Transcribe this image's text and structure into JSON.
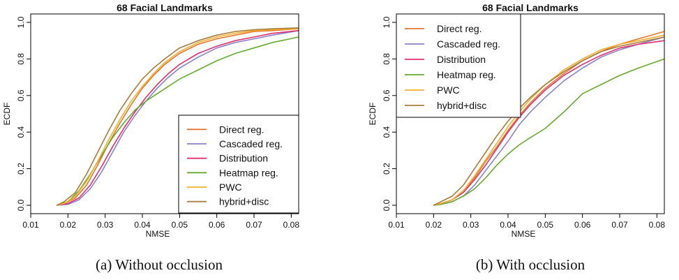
{
  "captions": [
    "(a) Without occlusion",
    "(b) With occlusion"
  ],
  "chart_data": [
    {
      "type": "line",
      "title": "68 Facial Landmarks",
      "xlabel": "NMSE",
      "ylabel": "ECDF",
      "xlim": [
        0.01,
        0.082
      ],
      "ylim": [
        0.0,
        1.0
      ],
      "xticks": [
        "0.01",
        "0.02",
        "0.03",
        "0.04",
        "0.05",
        "0.06",
        "0.07",
        "0.08"
      ],
      "yticks": [
        "0.0",
        "0.2",
        "0.4",
        "0.6",
        "0.8",
        "1.0"
      ],
      "grid": false,
      "legend_position": "bottom-right",
      "series": [
        {
          "name": "Direct reg.",
          "color": "#E3762F",
          "x": [
            0.017,
            0.019,
            0.022,
            0.025,
            0.028,
            0.031,
            0.034,
            0.037,
            0.04,
            0.043,
            0.046,
            0.05,
            0.055,
            0.06,
            0.065,
            0.07,
            0.075,
            0.082
          ],
          "y": [
            0.0,
            0.01,
            0.04,
            0.11,
            0.22,
            0.34,
            0.45,
            0.55,
            0.64,
            0.71,
            0.77,
            0.83,
            0.88,
            0.91,
            0.93,
            0.95,
            0.955,
            0.965
          ]
        },
        {
          "name": "Cascaded reg.",
          "color": "#8A82C8",
          "x": [
            0.017,
            0.02,
            0.023,
            0.026,
            0.029,
            0.032,
            0.035,
            0.038,
            0.041,
            0.044,
            0.047,
            0.05,
            0.055,
            0.06,
            0.065,
            0.07,
            0.075,
            0.082
          ],
          "y": [
            0.0,
            0.005,
            0.03,
            0.09,
            0.18,
            0.29,
            0.4,
            0.49,
            0.57,
            0.64,
            0.7,
            0.75,
            0.81,
            0.86,
            0.89,
            0.91,
            0.93,
            0.955
          ]
        },
        {
          "name": "Distribution",
          "color": "#E0306E",
          "x": [
            0.017,
            0.02,
            0.023,
            0.026,
            0.029,
            0.032,
            0.035,
            0.038,
            0.041,
            0.044,
            0.047,
            0.05,
            0.055,
            0.06,
            0.065,
            0.07,
            0.075,
            0.082
          ],
          "y": [
            0.0,
            0.01,
            0.04,
            0.11,
            0.21,
            0.32,
            0.42,
            0.51,
            0.59,
            0.66,
            0.72,
            0.77,
            0.83,
            0.87,
            0.9,
            0.92,
            0.94,
            0.955
          ]
        },
        {
          "name": "Heatmap reg.",
          "color": "#66AA2E",
          "x": [
            0.017,
            0.02,
            0.023,
            0.026,
            0.029,
            0.032,
            0.035,
            0.038,
            0.041,
            0.044,
            0.047,
            0.05,
            0.055,
            0.06,
            0.065,
            0.07,
            0.075,
            0.082
          ],
          "y": [
            0.0,
            0.02,
            0.08,
            0.17,
            0.27,
            0.37,
            0.45,
            0.52,
            0.57,
            0.61,
            0.65,
            0.69,
            0.74,
            0.79,
            0.83,
            0.86,
            0.89,
            0.92
          ]
        },
        {
          "name": "PWC",
          "color": "#EFB12C",
          "x": [
            0.017,
            0.019,
            0.022,
            0.025,
            0.028,
            0.031,
            0.034,
            0.037,
            0.04,
            0.043,
            0.046,
            0.05,
            0.055,
            0.06,
            0.065,
            0.07,
            0.075,
            0.082
          ],
          "y": [
            0.0,
            0.01,
            0.05,
            0.13,
            0.24,
            0.36,
            0.47,
            0.57,
            0.65,
            0.72,
            0.78,
            0.84,
            0.89,
            0.92,
            0.94,
            0.955,
            0.96,
            0.965
          ]
        },
        {
          "name": "hybrid+disc",
          "color": "#A97C3E",
          "x": [
            0.017,
            0.019,
            0.022,
            0.025,
            0.028,
            0.031,
            0.034,
            0.037,
            0.04,
            0.043,
            0.046,
            0.05,
            0.055,
            0.06,
            0.065,
            0.07,
            0.075,
            0.082
          ],
          "y": [
            0.0,
            0.02,
            0.07,
            0.17,
            0.29,
            0.41,
            0.52,
            0.61,
            0.69,
            0.75,
            0.8,
            0.86,
            0.9,
            0.93,
            0.95,
            0.96,
            0.965,
            0.97
          ]
        }
      ]
    },
    {
      "type": "line",
      "title": "68 Facial Landmarks",
      "xlabel": "NMSE",
      "ylabel": "ECDF",
      "xlim": [
        0.01,
        0.082
      ],
      "ylim": [
        0.0,
        1.0
      ],
      "xticks": [
        "0.01",
        "0.02",
        "0.03",
        "0.04",
        "0.05",
        "0.06",
        "0.07",
        "0.08"
      ],
      "yticks": [
        "0.0",
        "0.2",
        "0.4",
        "0.6",
        "0.8",
        "1.0"
      ],
      "grid": false,
      "legend_position": "top-left",
      "series": [
        {
          "name": "Direct reg.",
          "color": "#E3762F",
          "x": [
            0.02,
            0.022,
            0.025,
            0.028,
            0.031,
            0.034,
            0.037,
            0.04,
            0.043,
            0.046,
            0.05,
            0.055,
            0.06,
            0.065,
            0.07,
            0.075,
            0.082
          ],
          "y": [
            0.0,
            0.01,
            0.03,
            0.08,
            0.15,
            0.24,
            0.32,
            0.41,
            0.49,
            0.56,
            0.64,
            0.72,
            0.79,
            0.84,
            0.88,
            0.91,
            0.95
          ]
        },
        {
          "name": "Cascaded reg.",
          "color": "#8A82C8",
          "x": [
            0.02,
            0.022,
            0.025,
            0.028,
            0.031,
            0.034,
            0.037,
            0.04,
            0.043,
            0.046,
            0.05,
            0.055,
            0.06,
            0.065,
            0.07,
            0.075,
            0.082
          ],
          "y": [
            0.0,
            0.005,
            0.02,
            0.05,
            0.11,
            0.19,
            0.27,
            0.35,
            0.44,
            0.51,
            0.59,
            0.68,
            0.75,
            0.81,
            0.85,
            0.88,
            0.92
          ]
        },
        {
          "name": "Distribution",
          "color": "#E0306E",
          "x": [
            0.02,
            0.022,
            0.025,
            0.028,
            0.031,
            0.034,
            0.037,
            0.04,
            0.043,
            0.046,
            0.05,
            0.055,
            0.06,
            0.065,
            0.07,
            0.075,
            0.082
          ],
          "y": [
            0.0,
            0.01,
            0.03,
            0.07,
            0.14,
            0.22,
            0.31,
            0.4,
            0.48,
            0.55,
            0.63,
            0.71,
            0.77,
            0.82,
            0.86,
            0.88,
            0.9
          ]
        },
        {
          "name": "Heatmap reg.",
          "color": "#66AA2E",
          "x": [
            0.02,
            0.022,
            0.025,
            0.028,
            0.031,
            0.034,
            0.037,
            0.04,
            0.043,
            0.046,
            0.05,
            0.055,
            0.06,
            0.065,
            0.07,
            0.075,
            0.082
          ],
          "y": [
            0.0,
            0.005,
            0.02,
            0.05,
            0.09,
            0.15,
            0.22,
            0.28,
            0.33,
            0.37,
            0.42,
            0.51,
            0.61,
            0.66,
            0.71,
            0.75,
            0.8
          ]
        },
        {
          "name": "PWC",
          "color": "#EFB12C",
          "x": [
            0.02,
            0.022,
            0.025,
            0.028,
            0.031,
            0.034,
            0.037,
            0.04,
            0.043,
            0.046,
            0.05,
            0.055,
            0.06,
            0.065,
            0.07,
            0.075,
            0.082
          ],
          "y": [
            0.0,
            0.01,
            0.03,
            0.08,
            0.16,
            0.25,
            0.34,
            0.43,
            0.51,
            0.58,
            0.66,
            0.74,
            0.8,
            0.85,
            0.88,
            0.9,
            0.93
          ]
        },
        {
          "name": "hybrid+disc",
          "color": "#A97C3E",
          "x": [
            0.02,
            0.022,
            0.025,
            0.028,
            0.031,
            0.034,
            0.037,
            0.04,
            0.043,
            0.046,
            0.05,
            0.055,
            0.06,
            0.065,
            0.07,
            0.075,
            0.082
          ],
          "y": [
            0.0,
            0.02,
            0.05,
            0.11,
            0.2,
            0.29,
            0.38,
            0.46,
            0.53,
            0.59,
            0.66,
            0.73,
            0.79,
            0.84,
            0.87,
            0.89,
            0.92
          ]
        }
      ]
    }
  ]
}
